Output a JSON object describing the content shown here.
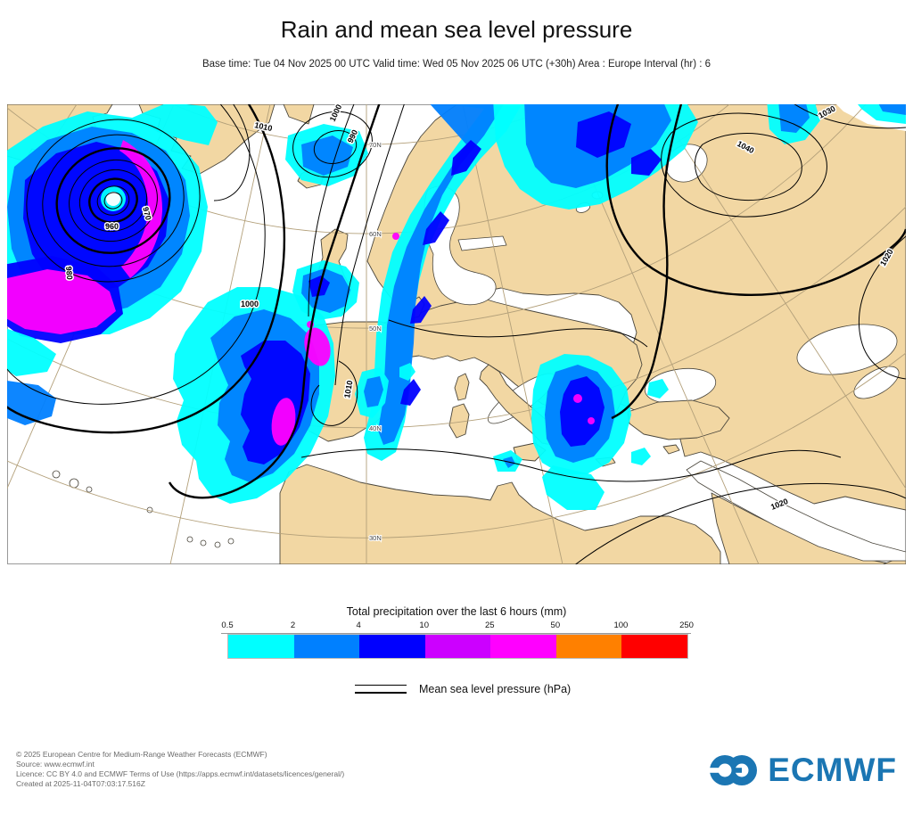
{
  "header": {
    "title": "Rain and mean sea level pressure",
    "subtitle": "Base time: Tue 04 Nov 2025 00 UTC Valid time: Wed 05 Nov 2025 06 UTC (+30h) Area : Europe Interval (hr) : 6"
  },
  "map": {
    "colors": {
      "land": "#F2D7A3",
      "sea": "#FFFFFF",
      "coastline": "#4a463c",
      "isobar": "#000000",
      "graticule": "#b3a07a"
    },
    "isobar_labels": [
      {
        "t": "1010"
      },
      {
        "t": "1000"
      },
      {
        "t": "990"
      },
      {
        "t": "960"
      },
      {
        "t": "970"
      },
      {
        "t": "980"
      },
      {
        "t": "1000"
      },
      {
        "t": "1040"
      },
      {
        "t": "1030"
      },
      {
        "t": "1020"
      },
      {
        "t": "1020"
      },
      {
        "t": "1010"
      }
    ],
    "lat_labels": [
      "70N",
      "60N",
      "50N",
      "40N",
      "30N"
    ]
  },
  "legend": {
    "precip_title": "Total precipitation over the last 6 hours (mm)",
    "ticks": [
      "0.5",
      "2",
      "4",
      "10",
      "25",
      "50",
      "100",
      "250"
    ],
    "colors": [
      "#00FFFF",
      "#0080FF",
      "#0000FF",
      "#CC00FF",
      "#FF00FF",
      "#FF8000",
      "#FF0000"
    ],
    "mslp_label": "Mean sea level pressure (hPa)"
  },
  "footer": {
    "lines": [
      "© 2025 European Centre for Medium-Range Weather Forecasts (ECMWF)",
      "Source: www.ecmwf.int",
      "Licence: CC BY 4.0 and ECMWF Terms of Use (https://apps.ecmwf.int/datasets/licences/general/)",
      "Created at 2025-11-04T07:03:17.516Z"
    ],
    "brand": "ECMWF",
    "brand_color": "#1B76B3"
  }
}
